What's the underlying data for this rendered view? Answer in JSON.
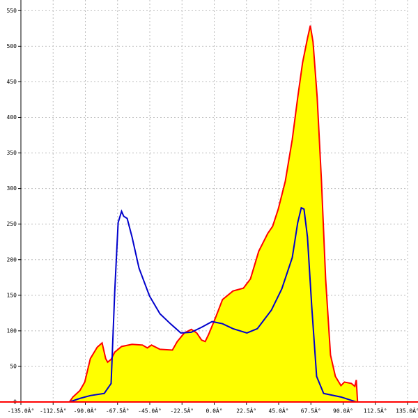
{
  "chart_data": {
    "type": "area",
    "xlim": [
      -135,
      135
    ],
    "ylim": [
      0,
      565
    ],
    "xticks": [
      {
        "value": -135,
        "label": "-135.0Â°"
      },
      {
        "value": -112.5,
        "label": "-112.5Â°"
      },
      {
        "value": -90,
        "label": "-90.0Â°"
      },
      {
        "value": -67.5,
        "label": "-67.5Â°"
      },
      {
        "value": -45,
        "label": "-45.0Â°"
      },
      {
        "value": -22.5,
        "label": "-22.5Â°"
      },
      {
        "value": 0,
        "label": "0.0Â°"
      },
      {
        "value": 22.5,
        "label": "22.5Â°"
      },
      {
        "value": 45,
        "label": "45.0Â°"
      },
      {
        "value": 67.5,
        "label": "67.5Â°"
      },
      {
        "value": 90,
        "label": "90.0Â°"
      },
      {
        "value": 112.5,
        "label": "112.5Â°"
      },
      {
        "value": 135,
        "label": "135.0Â°"
      }
    ],
    "yticks": [
      0,
      50,
      100,
      150,
      200,
      250,
      300,
      350,
      400,
      450,
      500,
      550
    ],
    "grid": true,
    "series": [
      {
        "color": "#ff0000",
        "fill": "#ffff00",
        "x": [
          -101.1,
          -98.7,
          -93.8,
          -90.4,
          -86.5,
          -81.7,
          -78.3,
          -75.8,
          -74.4,
          -72.0,
          -69.5,
          -64.7,
          -57.4,
          -50.1,
          -46.7,
          -43.8,
          -37.9,
          -29.2,
          -25.8,
          -20.9,
          -16.0,
          -12.2,
          -8.8,
          -6.3,
          -3.9,
          1.0,
          5.8,
          13.1,
          20.4,
          25.3,
          31.1,
          37.4,
          40.8,
          44.7,
          49.6,
          54.5,
          58.3,
          61.7,
          65.1,
          67.1,
          69.0,
          71.9,
          74.9,
          77.8,
          81.2,
          84.6,
          88.5,
          90.9,
          95.8,
          98.2,
          99.2,
          100.1
        ],
        "values": [
          0,
          7,
          16,
          28,
          61,
          77,
          83,
          61,
          56,
          60,
          70,
          78,
          81,
          80,
          76,
          80,
          74,
          73,
          85,
          97,
          102,
          97,
          87,
          85,
          95,
          119,
          144,
          156,
          160,
          173,
          212,
          237,
          247,
          271,
          310,
          369,
          428,
          477,
          511,
          529,
          506,
          428,
          310,
          173,
          66,
          36,
          23,
          28,
          26,
          22,
          31,
          0
        ]
      },
      {
        "color": "#0000cc",
        "x": [
          -101.1,
          -93.8,
          -86.5,
          -76.8,
          -72.0,
          -69.5,
          -67.1,
          -64.7,
          -63.2,
          -60.8,
          -57.4,
          -52.5,
          -45.2,
          -37.9,
          -30.6,
          -23.3,
          -16.0,
          -8.8,
          -1.5,
          5.8,
          13.1,
          22.8,
          30.1,
          39.9,
          47.2,
          54.5,
          58.3,
          60.8,
          62.7,
          65.1,
          68.1,
          71.5,
          76.4,
          88.5,
          99.2
        ],
        "values": [
          0,
          5,
          9,
          12,
          26,
          154,
          252,
          268,
          261,
          258,
          232,
          188,
          149,
          124,
          110,
          97,
          98,
          105,
          113,
          110,
          103,
          97,
          103,
          129,
          159,
          203,
          252,
          273,
          271,
          232,
          134,
          36,
          12,
          7,
          0
        ]
      }
    ]
  }
}
